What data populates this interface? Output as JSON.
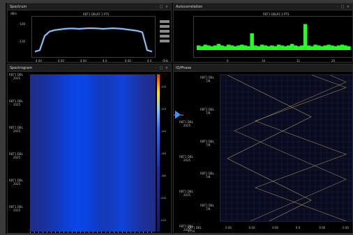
{
  "panels": {
    "spectrum": {
      "title": "Spectrum",
      "unit": "dBm",
      "plot_title": "RBT1 DBLRF 2 PTS",
      "y_ticks": [
        "-100",
        "-130"
      ],
      "x_ticks": [
        "4.00",
        "4.00",
        "4.00",
        "4.0",
        "4.00",
        "4.0"
      ],
      "x_unit": "GHz",
      "controls": "- □ ×",
      "chart_data": {
        "type": "line",
        "series": [
          {
            "values": [
              8,
              12,
              55,
              68,
              72,
              74,
              76,
              77,
              77,
              76,
              77,
              78,
              78,
              77,
              76,
              77,
              78,
              77,
              76,
              74,
              72,
              70,
              66,
              12,
              8
            ]
          }
        ],
        "ylim": [
          0,
          100
        ],
        "grid": false
      },
      "line_color": "#dfeeff",
      "glow_color": "#4aa3ff"
    },
    "autocorrelation": {
      "title": "Autocorrelation",
      "plot_title": "RBT1 DBLRF 2 PTS",
      "x_ticks": [
        "0",
        "10",
        "11",
        "20"
      ],
      "controls": "- □ ×",
      "chart_data": {
        "type": "bar",
        "values": [
          6,
          5,
          7,
          6,
          5,
          6,
          8,
          6,
          5,
          7,
          6,
          5,
          6,
          7,
          6,
          5,
          22,
          6,
          5,
          7,
          6,
          5,
          6,
          5,
          7,
          6,
          5,
          6,
          8,
          6,
          5,
          6,
          34,
          6,
          5,
          7,
          6,
          5,
          6,
          7,
          6,
          5,
          6,
          7,
          6,
          5
        ],
        "ylim": [
          0,
          40
        ]
      },
      "bar_color": "#22ff22"
    },
    "spectrogram": {
      "title": "Spectrogram",
      "controls": "- □ ×",
      "time_labels": [
        [
          "RBT1 DBL",
          "2025"
        ],
        [
          "RBT1 DBL",
          "2025"
        ],
        [
          "RBT1 DBL",
          "2025"
        ],
        [
          "RBT1 DBL",
          "2025"
        ],
        [
          "RBT1 DBL",
          "2025"
        ],
        [
          "RBT1 DBL",
          "2025"
        ]
      ],
      "colorbar_ticks": [
        "-100",
        "-120",
        "-140",
        "-160",
        "-180",
        "-200",
        "-220"
      ]
    },
    "iq": {
      "title": "IQ/Phase",
      "time_labels": [
        [
          "RBT1 DBL",
          "2025"
        ],
        [
          "RBT1 DBL",
          "2025"
        ],
        [
          "RBT1 DBL",
          "2025"
        ],
        [
          "RBT1 DBL",
          "2025"
        ]
      ],
      "right_labels": [
        [
          "RBT1 DBL",
          "7/8"
        ],
        [
          "RBT1 DBL",
          "7/8"
        ],
        [
          "RBT1 DBL",
          "7/8"
        ],
        [
          "RBT1 DBL",
          "7/8"
        ],
        [
          "RBT1 DBL",
          "7/8"
        ]
      ],
      "x_ticks": [
        "0.00",
        "0.00",
        "0.00",
        "0.0",
        "0.00",
        "0.00"
      ],
      "bottom_label": "RBT1 DBL 5754",
      "marker_color": "#2a9bff"
    }
  }
}
